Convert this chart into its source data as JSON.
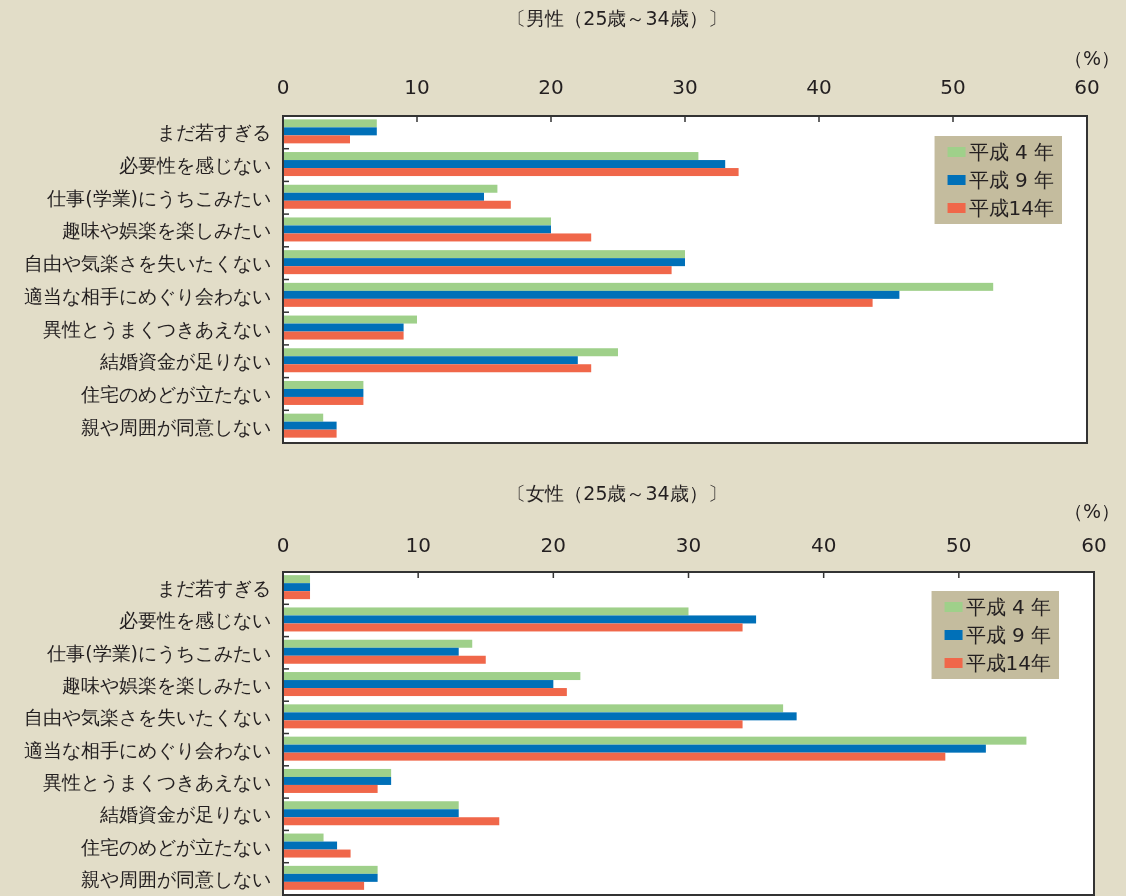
{
  "chart_data": [
    {
      "type": "bar",
      "orientation": "horizontal",
      "title": "〔男性（25歳～34歳）〕",
      "xlabel": "（%）",
      "categories": [
        "まだ若すぎる",
        "必要性を感じない",
        "仕事(学業)にうちこみたい",
        "趣味や娯楽を楽しみたい",
        "自由や気楽さを失いたくない",
        "適当な相手にめぐり会わない",
        "異性とうまくつきあえない",
        "結婚資金が足りない",
        "住宅のめどが立たない",
        "親や周囲が同意しない"
      ],
      "series": [
        {
          "name": "平成 4 年",
          "color": "#9fd08a",
          "values": [
            7,
            31,
            16,
            20,
            30,
            53,
            10,
            25,
            6,
            3
          ]
        },
        {
          "name": "平成 9 年",
          "color": "#0070b8",
          "values": [
            7,
            33,
            15,
            20,
            30,
            46,
            9,
            22,
            6,
            4
          ]
        },
        {
          "name": "平成14年",
          "color": "#f0674a",
          "values": [
            5,
            34,
            17,
            23,
            29,
            44,
            9,
            23,
            6,
            4
          ]
        }
      ],
      "xlim": [
        0,
        60
      ],
      "xticks": [
        0,
        10,
        20,
        30,
        40,
        50,
        60
      ],
      "legend": "top right"
    },
    {
      "type": "bar",
      "orientation": "horizontal",
      "title": "〔女性（25歳～34歳）〕",
      "xlabel": "（%）",
      "categories": [
        "まだ若すぎる",
        "必要性を感じない",
        "仕事(学業)にうちこみたい",
        "趣味や娯楽を楽しみたい",
        "自由や気楽さを失いたくない",
        "適当な相手にめぐり会わない",
        "異性とうまくつきあえない",
        "結婚資金が足りない",
        "住宅のめどが立たない",
        "親や周囲が同意しない"
      ],
      "series": [
        {
          "name": "平成 4 年",
          "color": "#9fd08a",
          "values": [
            2,
            30,
            14,
            22,
            37,
            55,
            8,
            13,
            3,
            7
          ]
        },
        {
          "name": "平成 9 年",
          "color": "#0070b8",
          "values": [
            2,
            35,
            13,
            20,
            38,
            52,
            8,
            13,
            4,
            7
          ]
        },
        {
          "name": "平成14年",
          "color": "#f0674a",
          "values": [
            2,
            34,
            15,
            21,
            34,
            49,
            7,
            16,
            5,
            6
          ]
        }
      ],
      "xlim": [
        0,
        60
      ],
      "xticks": [
        0,
        10,
        20,
        30,
        40,
        50,
        60
      ],
      "legend": "top right"
    }
  ]
}
